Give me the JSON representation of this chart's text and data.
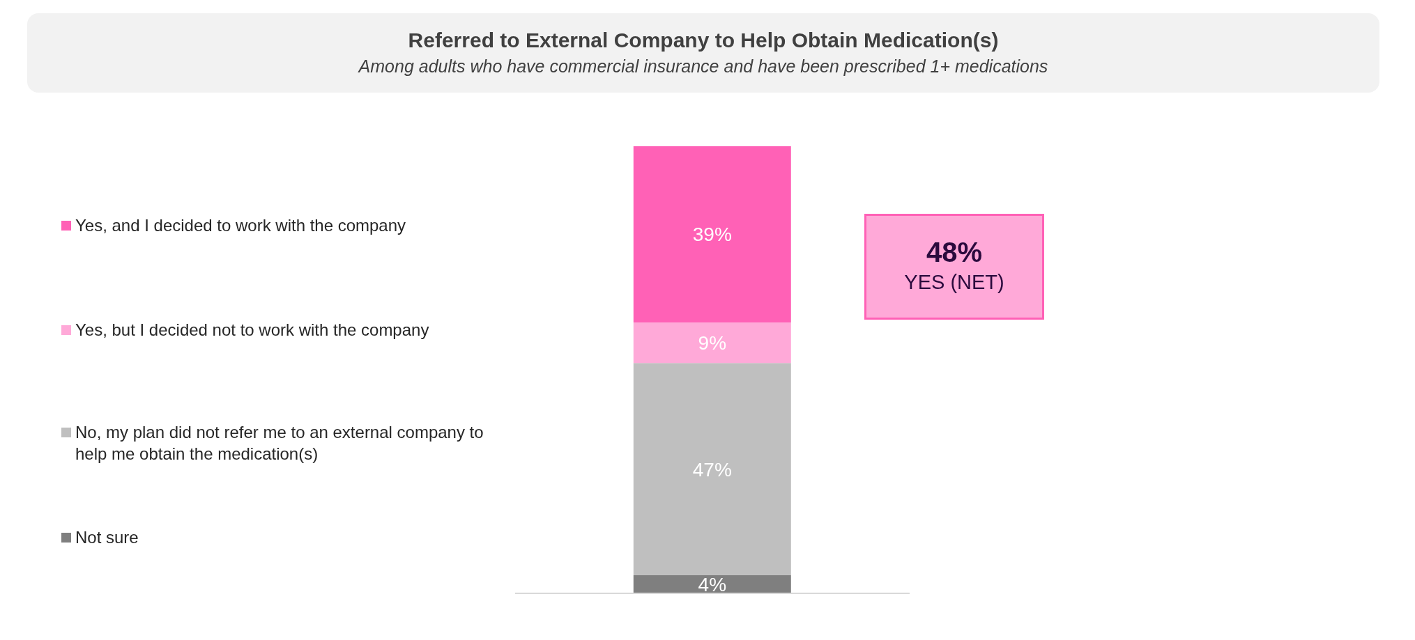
{
  "chart_data": {
    "type": "bar",
    "title": "Referred to External Company to Help Obtain Medication(s)",
    "subtitle": "Among adults who have commercial insurance and have been prescribed 1+ medications",
    "categories": [
      null
    ],
    "stacked": true,
    "legend": "left",
    "annotations": [
      "48%",
      "YES (NET)"
    ],
    "series": [
      {
        "name": "Not sure",
        "color": "#7f7f7f",
        "values": [
          4
        ],
        "value_labels": [
          "4%"
        ]
      },
      {
        "name": "No, my plan did not refer me to an external company to help me obtain the medication(s)",
        "color": "#bfbfbf",
        "values": [
          47
        ],
        "value_labels": [
          "47%"
        ]
      },
      {
        "name": "Yes, but I decided not to work with the company",
        "color": "#ffa9d8",
        "values": [
          9
        ],
        "value_labels": [
          "9%"
        ]
      },
      {
        "name": "Yes, and I decided to work with the company",
        "color": "#ff61b6",
        "values": [
          39
        ],
        "value_labels": [
          "39%"
        ]
      }
    ]
  }
}
